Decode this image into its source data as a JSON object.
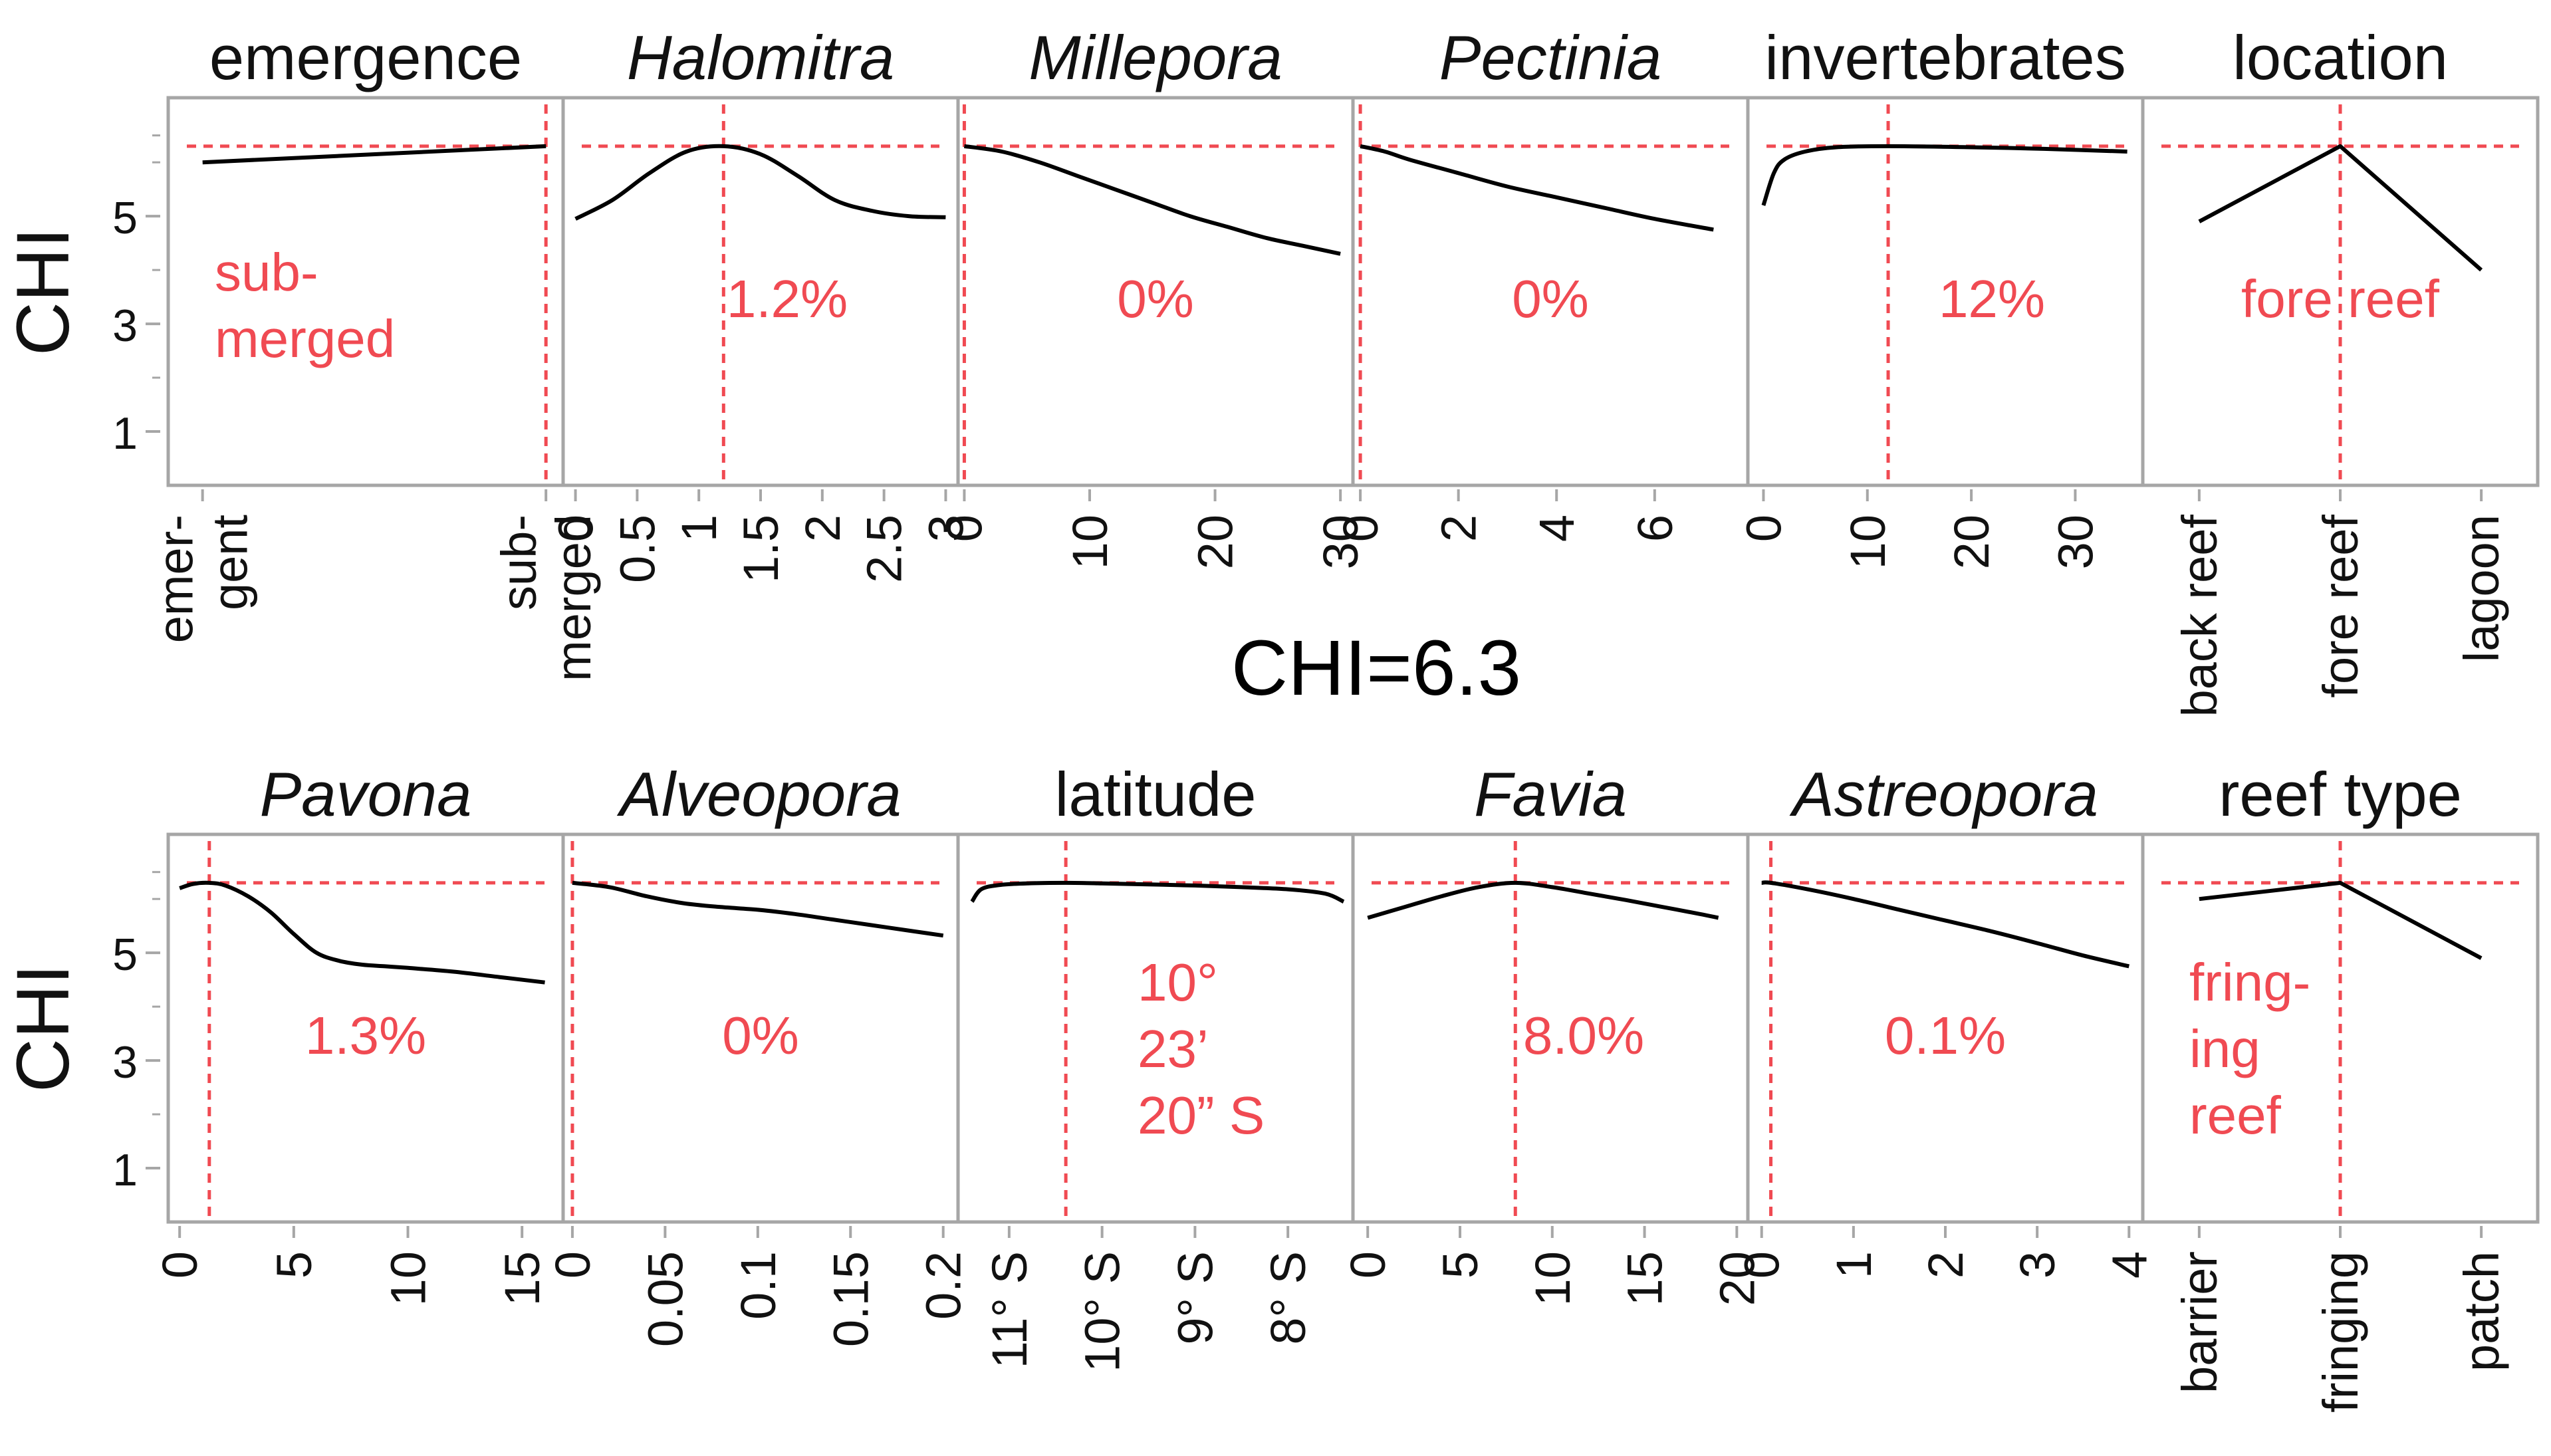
{
  "figure": {
    "summary_label": "CHI=6.3",
    "y_axis_label": "CHI",
    "y_ticks": [
      "1",
      "3",
      "5"
    ],
    "reference_value": 6.3,
    "accent_color": "#f04a52",
    "curve_color": "#000000",
    "frame_color": "#a6a6a6"
  },
  "chart_data": [
    {
      "type": "line",
      "title": "emergence",
      "italic": false,
      "categorical": true,
      "categories": [
        "emer-\ngent",
        "sub-\nmerged"
      ],
      "x": [
        0,
        1
      ],
      "y": [
        6.0,
        6.3
      ],
      "xlim": [
        -0.1,
        1.05
      ],
      "ylim": [
        0,
        7.2
      ],
      "marker_x": 1,
      "annotation": [
        "sub-",
        "merged"
      ]
    },
    {
      "type": "line",
      "title": "Halomitra",
      "italic": true,
      "x_ticks": [
        "0",
        "0.5",
        "1",
        "1.5",
        "2",
        "2.5",
        "3"
      ],
      "x_tick_values": [
        0,
        0.5,
        1,
        1.5,
        2,
        2.5,
        3
      ],
      "x": [
        0,
        0.3,
        0.6,
        0.9,
        1.2,
        1.5,
        1.8,
        2.1,
        2.4,
        2.7,
        3.0
      ],
      "y": [
        4.95,
        5.3,
        5.8,
        6.2,
        6.3,
        6.15,
        5.75,
        5.3,
        5.1,
        5.0,
        4.98
      ],
      "xlim": [
        -0.1,
        3.1
      ],
      "ylim": [
        0,
        7.2
      ],
      "marker_x": 1.2,
      "annotation": [
        "1.2%"
      ]
    },
    {
      "type": "line",
      "title": "Millepora",
      "italic": true,
      "x_ticks": [
        "0",
        "10",
        "20",
        "30"
      ],
      "x_tick_values": [
        0,
        10,
        20,
        30
      ],
      "x": [
        0,
        3,
        6,
        9,
        12,
        15,
        18,
        21,
        24,
        27,
        30
      ],
      "y": [
        6.3,
        6.2,
        6.0,
        5.75,
        5.5,
        5.25,
        5.0,
        4.8,
        4.6,
        4.45,
        4.3
      ],
      "xlim": [
        -0.5,
        31
      ],
      "ylim": [
        0,
        7.2
      ],
      "marker_x": 0,
      "annotation": [
        "0%"
      ]
    },
    {
      "type": "line",
      "title": "Pectinia",
      "italic": true,
      "x_ticks": [
        "0",
        "2",
        "4",
        "6"
      ],
      "x_tick_values": [
        0,
        2,
        4,
        6
      ],
      "x": [
        0,
        0.5,
        1,
        2,
        3,
        4,
        5,
        6,
        7.2
      ],
      "y": [
        6.3,
        6.2,
        6.05,
        5.8,
        5.55,
        5.35,
        5.15,
        4.95,
        4.75
      ],
      "xlim": [
        -0.15,
        7.9
      ],
      "ylim": [
        0,
        7.2
      ],
      "marker_x": 0,
      "annotation": [
        "0%"
      ]
    },
    {
      "type": "line",
      "title": "invertebrates",
      "italic": false,
      "x_ticks": [
        "0",
        "10",
        "20",
        "30"
      ],
      "x_tick_values": [
        0,
        10,
        20,
        30
      ],
      "x": [
        0,
        1,
        2,
        4,
        7,
        12,
        20,
        27,
        35
      ],
      "y": [
        5.2,
        5.8,
        6.05,
        6.2,
        6.28,
        6.3,
        6.28,
        6.25,
        6.2
      ],
      "xlim": [
        -1.5,
        36.5
      ],
      "ylim": [
        0,
        7.2
      ],
      "marker_x": 12,
      "annotation": [
        "12%"
      ]
    },
    {
      "type": "line",
      "title": "location",
      "italic": false,
      "categorical": true,
      "categories": [
        "back reef",
        "fore reef",
        "lagoon"
      ],
      "x": [
        0,
        1,
        2
      ],
      "y": [
        4.9,
        6.3,
        4.0
      ],
      "xlim": [
        -0.4,
        2.4
      ],
      "ylim": [
        0,
        7.2
      ],
      "marker_x": 1,
      "annotation": [
        "fore reef"
      ]
    },
    {
      "type": "line",
      "title": "Pavona",
      "italic": true,
      "x_ticks": [
        "0",
        "5",
        "10",
        "15"
      ],
      "x_tick_values": [
        0,
        5,
        10,
        15
      ],
      "x": [
        0,
        0.6,
        1.3,
        2,
        3,
        4,
        5,
        6,
        7,
        8,
        9,
        10,
        12,
        14,
        16
      ],
      "y": [
        6.2,
        6.28,
        6.3,
        6.25,
        6.05,
        5.75,
        5.35,
        5.0,
        4.85,
        4.78,
        4.75,
        4.72,
        4.65,
        4.55,
        4.45
      ],
      "xlim": [
        -0.5,
        16.8
      ],
      "ylim": [
        0,
        7.2
      ],
      "marker_x": 1.3,
      "annotation": [
        "1.3%"
      ]
    },
    {
      "type": "line",
      "title": "Alveopora",
      "italic": true,
      "x_ticks": [
        "0",
        "0.05",
        "0.1",
        "0.15",
        "0.2"
      ],
      "x_tick_values": [
        0,
        0.05,
        0.1,
        0.15,
        0.2
      ],
      "x": [
        0,
        0.02,
        0.04,
        0.06,
        0.08,
        0.1,
        0.12,
        0.14,
        0.16,
        0.18,
        0.2
      ],
      "y": [
        6.3,
        6.22,
        6.05,
        5.92,
        5.85,
        5.8,
        5.72,
        5.62,
        5.52,
        5.42,
        5.32
      ],
      "xlim": [
        -0.005,
        0.208
      ],
      "ylim": [
        0,
        7.2
      ],
      "marker_x": 0,
      "annotation": [
        "0%"
      ]
    },
    {
      "type": "line",
      "title": "latitude",
      "italic": false,
      "reversed_x": true,
      "x_ticks": [
        "11° S",
        "10° S",
        "9° S",
        "8° S"
      ],
      "x_tick_values": [
        11,
        10,
        9,
        8
      ],
      "x": [
        11.4,
        11.3,
        11.1,
        10.8,
        10.39,
        10,
        9.5,
        9,
        8.5,
        8,
        7.6,
        7.4
      ],
      "y": [
        5.95,
        6.18,
        6.26,
        6.29,
        6.3,
        6.29,
        6.27,
        6.25,
        6.22,
        6.18,
        6.1,
        5.95
      ],
      "xlim": [
        11.55,
        7.3
      ],
      "ylim": [
        0,
        7.2
      ],
      "marker_x": 10.39,
      "annotation": [
        "10°",
        "23’",
        "20” S"
      ]
    },
    {
      "type": "line",
      "title": "Favia",
      "italic": true,
      "x_ticks": [
        "0",
        "5",
        "10",
        "15",
        "20"
      ],
      "x_tick_values": [
        0,
        5,
        10,
        15,
        20
      ],
      "x": [
        0,
        2,
        4,
        6,
        8,
        10,
        12,
        14,
        16,
        18,
        19
      ],
      "y": [
        5.65,
        5.85,
        6.05,
        6.22,
        6.3,
        6.22,
        6.1,
        5.98,
        5.85,
        5.72,
        5.65
      ],
      "xlim": [
        -0.8,
        20.6
      ],
      "ylim": [
        0,
        7.2
      ],
      "marker_x": 8.0,
      "annotation": [
        "8.0%"
      ]
    },
    {
      "type": "line",
      "title": "Astreopora",
      "italic": true,
      "x_ticks": [
        "0",
        "1",
        "2",
        "3",
        "4"
      ],
      "x_tick_values": [
        0,
        1,
        2,
        3,
        4
      ],
      "x": [
        0,
        0.1,
        0.5,
        1,
        1.5,
        2,
        2.5,
        3,
        3.5,
        4
      ],
      "y": [
        6.3,
        6.3,
        6.18,
        6.0,
        5.8,
        5.6,
        5.4,
        5.18,
        4.95,
        4.75
      ],
      "xlim": [
        -0.15,
        4.15
      ],
      "ylim": [
        0,
        7.2
      ],
      "marker_x": 0.1,
      "annotation": [
        "0.1%"
      ]
    },
    {
      "type": "line",
      "title": "reef type",
      "italic": false,
      "categorical": true,
      "categories": [
        "barrier",
        "fringing",
        "patch"
      ],
      "x": [
        0,
        1,
        2
      ],
      "y": [
        6.0,
        6.3,
        4.9
      ],
      "xlim": [
        -0.4,
        2.4
      ],
      "ylim": [
        0,
        7.2
      ],
      "marker_x": 1,
      "annotation": [
        "fring-",
        "ing",
        "reef"
      ]
    }
  ]
}
